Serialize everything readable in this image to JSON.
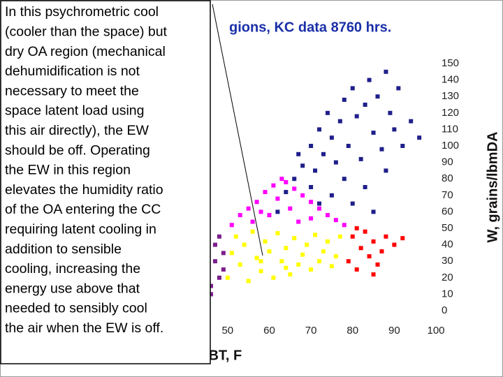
{
  "chart_data": {
    "type": "scatter",
    "title": "gions, KC data 8760 hrs.",
    "x_label": "DBT, F",
    "y_label": "W, grains/lbmDA",
    "xlim": [
      45,
      100
    ],
    "xticks": [
      50,
      60,
      70,
      80,
      90,
      100
    ],
    "ylim": [
      0,
      150
    ],
    "yticks": [
      0,
      10,
      20,
      30,
      40,
      50,
      60,
      70,
      80,
      90,
      100,
      110,
      120,
      130,
      140,
      150
    ],
    "grid": false,
    "series": [
      {
        "color": "#1f1f8a",
        "x": [
          62,
          64,
          66,
          67,
          68,
          70,
          71,
          72,
          73,
          74,
          75,
          76,
          77,
          78,
          79,
          80,
          81,
          82,
          83,
          84,
          85,
          86,
          87,
          88,
          89,
          90,
          91,
          92,
          94,
          96,
          70,
          75,
          80,
          85,
          72,
          78,
          83,
          88
        ],
        "values": [
          60,
          72,
          80,
          95,
          88,
          100,
          85,
          110,
          95,
          120,
          105,
          90,
          115,
          128,
          100,
          135,
          118,
          92,
          125,
          140,
          108,
          130,
          98,
          145,
          120,
          110,
          135,
          100,
          115,
          105,
          75,
          70,
          65,
          60,
          65,
          80,
          75,
          85
        ]
      },
      {
        "color": "#ff00ff",
        "x": [
          51,
          53,
          55,
          57,
          59,
          61,
          63,
          64,
          66,
          68,
          70,
          72,
          74,
          76,
          78,
          56,
          60,
          65,
          70,
          62,
          58,
          67
        ],
        "values": [
          52,
          58,
          62,
          66,
          72,
          76,
          80,
          78,
          74,
          70,
          66,
          62,
          58,
          55,
          52,
          54,
          58,
          62,
          56,
          68,
          60,
          54
        ]
      },
      {
        "color": "#ffff00",
        "x": [
          50,
          51,
          52,
          53,
          54,
          55,
          56,
          57,
          58,
          59,
          60,
          61,
          62,
          63,
          64,
          65,
          66,
          67,
          68,
          69,
          70,
          71,
          72,
          73,
          74,
          75,
          76,
          77,
          58,
          64
        ],
        "values": [
          20,
          35,
          45,
          28,
          40,
          18,
          48,
          32,
          24,
          42,
          36,
          20,
          47,
          30,
          38,
          22,
          44,
          28,
          34,
          40,
          25,
          46,
          30,
          36,
          42,
          27,
          33,
          45,
          30,
          26
        ]
      },
      {
        "color": "#ff0000",
        "x": [
          79,
          80,
          81,
          82,
          83,
          84,
          85,
          86,
          87,
          88,
          90,
          92,
          81,
          85
        ],
        "values": [
          30,
          45,
          25,
          38,
          48,
          33,
          42,
          28,
          36,
          45,
          40,
          44,
          50,
          22
        ]
      },
      {
        "color": "#7b1f8c",
        "x": [
          46,
          47,
          48,
          49,
          47,
          48,
          49,
          46
        ],
        "values": [
          15,
          30,
          45,
          25,
          40,
          20,
          35,
          10
        ]
      }
    ],
    "annotation": {
      "lines": [
        "In this psychrometric cool",
        "(cooler than the space) but",
        "dry OA region (mechanical",
        "dehumidification is not",
        "necessary to meet the",
        "space latent load using",
        "this air directly), the EW",
        "should be off.  Operating",
        "the EW in this region",
        "elevates the humidity ratio",
        "of the OA entering the CC",
        "requiring latent cooling in",
        "addition to sensible",
        "cooling, increasing the",
        "energy use above that",
        "needed to sensibly cool",
        "the air when the EW is off."
      ]
    }
  }
}
